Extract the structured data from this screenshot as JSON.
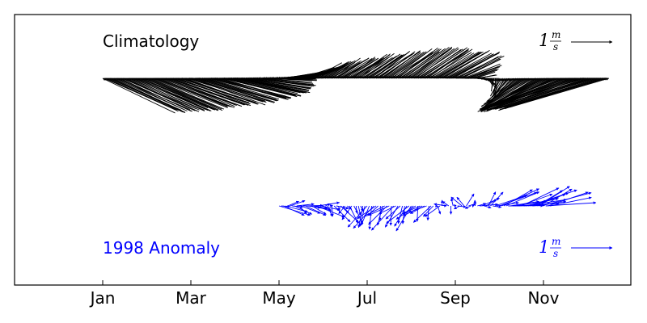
{
  "chart_data": {
    "type": "quiver",
    "xaxis": {
      "ticks": [
        "Jan",
        "Mar",
        "May",
        "Jul",
        "Sep",
        "Nov"
      ]
    },
    "panels": [
      {
        "name": "Climatology",
        "color": "#000000",
        "key": {
          "value": 1,
          "unit_num": "m",
          "unit_den": "s",
          "position": "top-right"
        },
        "label_position": "top-left",
        "vectors_by_month": [
          {
            "month": "Jan",
            "u": 1.0,
            "v": -0.62
          },
          {
            "month": "Feb",
            "u": 1.03,
            "v": -0.55
          },
          {
            "month": "Mar",
            "u": 1.05,
            "v": -0.45
          },
          {
            "month": "Apr",
            "u": 1.0,
            "v": -0.28
          },
          {
            "month": "May",
            "u": 0.55,
            "v": 0.05
          },
          {
            "month": "Jun",
            "u": 0.4,
            "v": 0.3
          },
          {
            "month": "Jul",
            "u": 0.5,
            "v": 0.45
          },
          {
            "month": "Aug",
            "u": 0.6,
            "v": 0.55
          },
          {
            "month": "Sep",
            "u": 0.65,
            "v": 0.45
          },
          {
            "month": "Oct",
            "u": -0.1,
            "v": -0.35
          },
          {
            "month": "Nov",
            "u": -0.9,
            "v": -0.6
          },
          {
            "month": "Dec",
            "u": -1.4,
            "v": -0.55
          }
        ]
      },
      {
        "name": "1998 Anomaly",
        "color": "#0000ff",
        "key": {
          "value": 1,
          "unit_num": "m",
          "unit_den": "s",
          "position": "bottom-right"
        },
        "label_position": "bottom-left",
        "vectors_by_month": [
          {
            "month": "May",
            "u": 0.3,
            "v": 0.0
          },
          {
            "month": "Jun",
            "u": 0.25,
            "v": -0.1
          },
          {
            "month": "Jul",
            "u": -0.1,
            "v": -0.25
          },
          {
            "month": "Aug",
            "u": -0.2,
            "v": -0.3
          },
          {
            "month": "Sep",
            "u": -0.05,
            "v": 0.05
          },
          {
            "month": "Oct",
            "u": 0.35,
            "v": 0.15
          },
          {
            "month": "Nov",
            "u": 0.55,
            "v": 0.2
          }
        ]
      }
    ]
  }
}
